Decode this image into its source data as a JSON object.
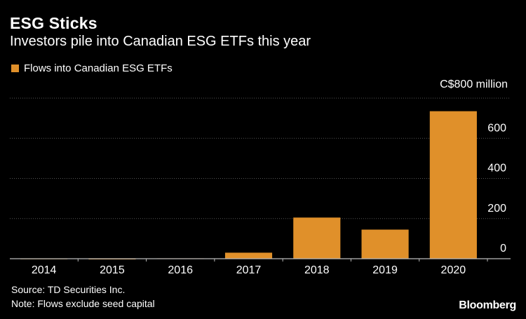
{
  "header": {
    "title": "ESG Sticks",
    "subtitle": "Investors pile into Canadian ESG ETFs this year"
  },
  "footer": {
    "source": "Source: TD Securities Inc.",
    "note": "Note: Flows exclude seed capital",
    "brand": "Bloomberg"
  },
  "colors": {
    "background": "#000000",
    "bar": "#e0902a",
    "grid": "#555555",
    "text": "#ffffff"
  },
  "chart_data": {
    "type": "bar",
    "title": "ESG Sticks",
    "subtitle": "Investors pile into Canadian ESG ETFs this year",
    "unit_label": "C$800 million",
    "categories": [
      "2014",
      "2015",
      "2016",
      "2017",
      "2018",
      "2019",
      "2020"
    ],
    "series": [
      {
        "name": "Flows into Canadian ESG ETFs",
        "values": [
          1,
          -2,
          2,
          30,
          205,
          145,
          735
        ]
      }
    ],
    "ylim": [
      0,
      800
    ],
    "yticks": [
      0,
      200,
      400,
      600
    ],
    "grid": true,
    "legend_position": "top-left",
    "y_axis_side": "right"
  }
}
